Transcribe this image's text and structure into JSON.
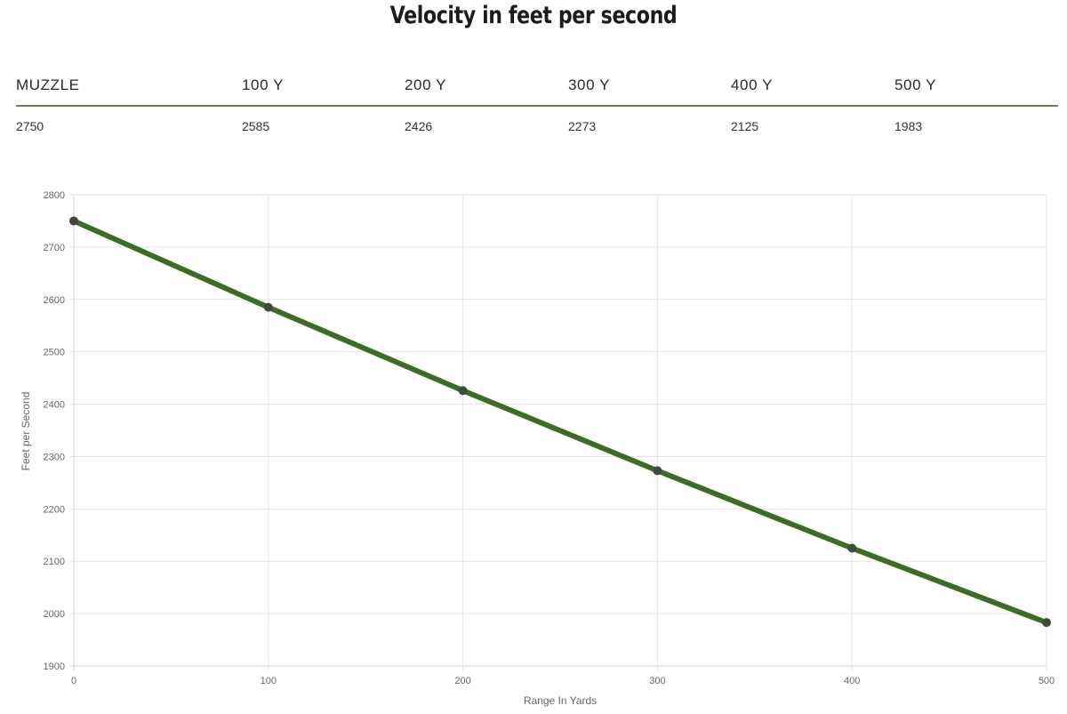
{
  "title": "Velocity in feet per second",
  "table": {
    "headers": [
      "MUZZLE",
      "100 Y",
      "200 Y",
      "300 Y",
      "400 Y",
      "500 Y"
    ],
    "values": [
      "2750",
      "2585",
      "2426",
      "2273",
      "2125",
      "1983"
    ]
  },
  "chart_data": {
    "type": "line",
    "x": [
      0,
      100,
      200,
      300,
      400,
      500
    ],
    "values": [
      2750,
      2585,
      2426,
      2273,
      2125,
      1983
    ],
    "xlabel": "Range In Yards",
    "ylabel": "Feet per Second",
    "xlim": [
      0,
      500
    ],
    "ylim": [
      1900,
      2800
    ],
    "xticks": [
      0,
      100,
      200,
      300,
      400,
      500
    ],
    "yticks": [
      1900,
      2000,
      2100,
      2200,
      2300,
      2400,
      2500,
      2600,
      2700,
      2800
    ],
    "grid": true,
    "line_color": "#3a6e23",
    "point_color": "#3f4a3a"
  }
}
